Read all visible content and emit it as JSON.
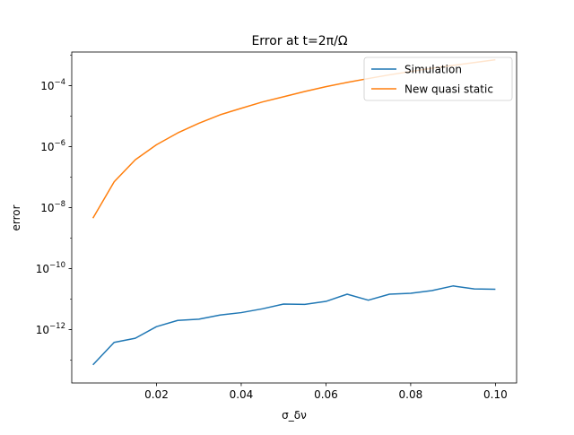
{
  "chart_data": {
    "type": "line",
    "title": "Error at t=2π/Ω",
    "xlabel": "σ_δν",
    "ylabel": "error",
    "xlim": [
      0.0,
      0.105
    ],
    "ylim_log10": [
      -13.75,
      -2.9
    ],
    "yscale": "log",
    "grid": false,
    "legend_position": "top-right",
    "x_ticks": [
      0.02,
      0.04,
      0.06,
      0.08,
      0.1
    ],
    "x_tick_labels": [
      "0.02",
      "0.04",
      "0.06",
      "0.08",
      "0.10"
    ],
    "y_ticks": [
      {
        "mantissa": "10",
        "exp": "−12",
        "log10": -12
      },
      {
        "mantissa": "10",
        "exp": "−10",
        "log10": -10
      },
      {
        "mantissa": "10",
        "exp": "−8",
        "log10": -8
      },
      {
        "mantissa": "10",
        "exp": "−6",
        "log10": -6
      },
      {
        "mantissa": "10",
        "exp": "−4",
        "log10": -4
      }
    ],
    "x": [
      0.005,
      0.01,
      0.015,
      0.02,
      0.025,
      0.03,
      0.035,
      0.04,
      0.045,
      0.05,
      0.055,
      0.06,
      0.065,
      0.07,
      0.075,
      0.08,
      0.085,
      0.09,
      0.095,
      0.1
    ],
    "series": [
      {
        "name": "Simulation",
        "color": "#1f77b4",
        "values": [
          7e-14,
          3.8e-13,
          5.2e-13,
          1.25e-12,
          2e-12,
          2.2e-12,
          3e-12,
          3.6e-12,
          4.8e-12,
          6.9e-12,
          6.7e-12,
          8.4e-12,
          1.45e-11,
          9.2e-12,
          1.45e-11,
          1.55e-11,
          1.9e-11,
          2.7e-11,
          2.15e-11,
          2.1e-11
        ]
      },
      {
        "name": "New quasi static",
        "color": "#ff7f0e",
        "values": [
          4.5e-09,
          7e-08,
          3.7e-07,
          1.15e-06,
          2.8e-06,
          5.8e-06,
          1.1e-05,
          1.8e-05,
          2.9e-05,
          4.3e-05,
          6.4e-05,
          9.2e-05,
          0.000127,
          0.00017,
          0.000225,
          0.00029,
          0.00037,
          0.00046,
          0.00057,
          0.0007
        ]
      }
    ]
  }
}
